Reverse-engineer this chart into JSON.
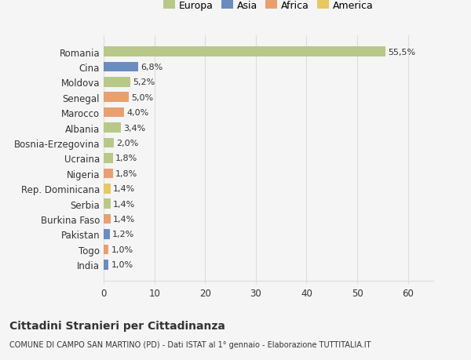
{
  "categories": [
    "India",
    "Togo",
    "Pakistan",
    "Burkina Faso",
    "Serbia",
    "Rep. Dominicana",
    "Nigeria",
    "Ucraina",
    "Bosnia-Erzegovina",
    "Albania",
    "Marocco",
    "Senegal",
    "Moldova",
    "Cina",
    "Romania"
  ],
  "values": [
    1.0,
    1.0,
    1.2,
    1.4,
    1.4,
    1.4,
    1.8,
    1.8,
    2.0,
    3.4,
    4.0,
    5.0,
    5.2,
    6.8,
    55.5
  ],
  "labels": [
    "1,0%",
    "1,0%",
    "1,2%",
    "1,4%",
    "1,4%",
    "1,4%",
    "1,8%",
    "1,8%",
    "2,0%",
    "3,4%",
    "4,0%",
    "5,0%",
    "5,2%",
    "6,8%",
    "55,5%"
  ],
  "colors": [
    "#6b8cbf",
    "#e8a070",
    "#6b8cbf",
    "#e8a070",
    "#b8c888",
    "#e8c860",
    "#e8a070",
    "#b8c888",
    "#b8c888",
    "#b8c888",
    "#e8a070",
    "#e8a070",
    "#b8c888",
    "#6b8cbf",
    "#b8c888"
  ],
  "continent_colors": {
    "Europa": "#b8c888",
    "Asia": "#6b8cbf",
    "Africa": "#e8a070",
    "America": "#e8c860"
  },
  "legend_labels": [
    "Europa",
    "Asia",
    "Africa",
    "America"
  ],
  "title": "Cittadini Stranieri per Cittadinanza",
  "subtitle": "COMUNE DI CAMPO SAN MARTINO (PD) - Dati ISTAT al 1° gennaio - Elaborazione TUTTITALIA.IT",
  "xlim": [
    0,
    65
  ],
  "xticks": [
    0,
    10,
    20,
    30,
    40,
    50,
    60
  ],
  "background_color": "#f5f5f5",
  "grid_color": "#dddddd",
  "text_color": "#333333"
}
